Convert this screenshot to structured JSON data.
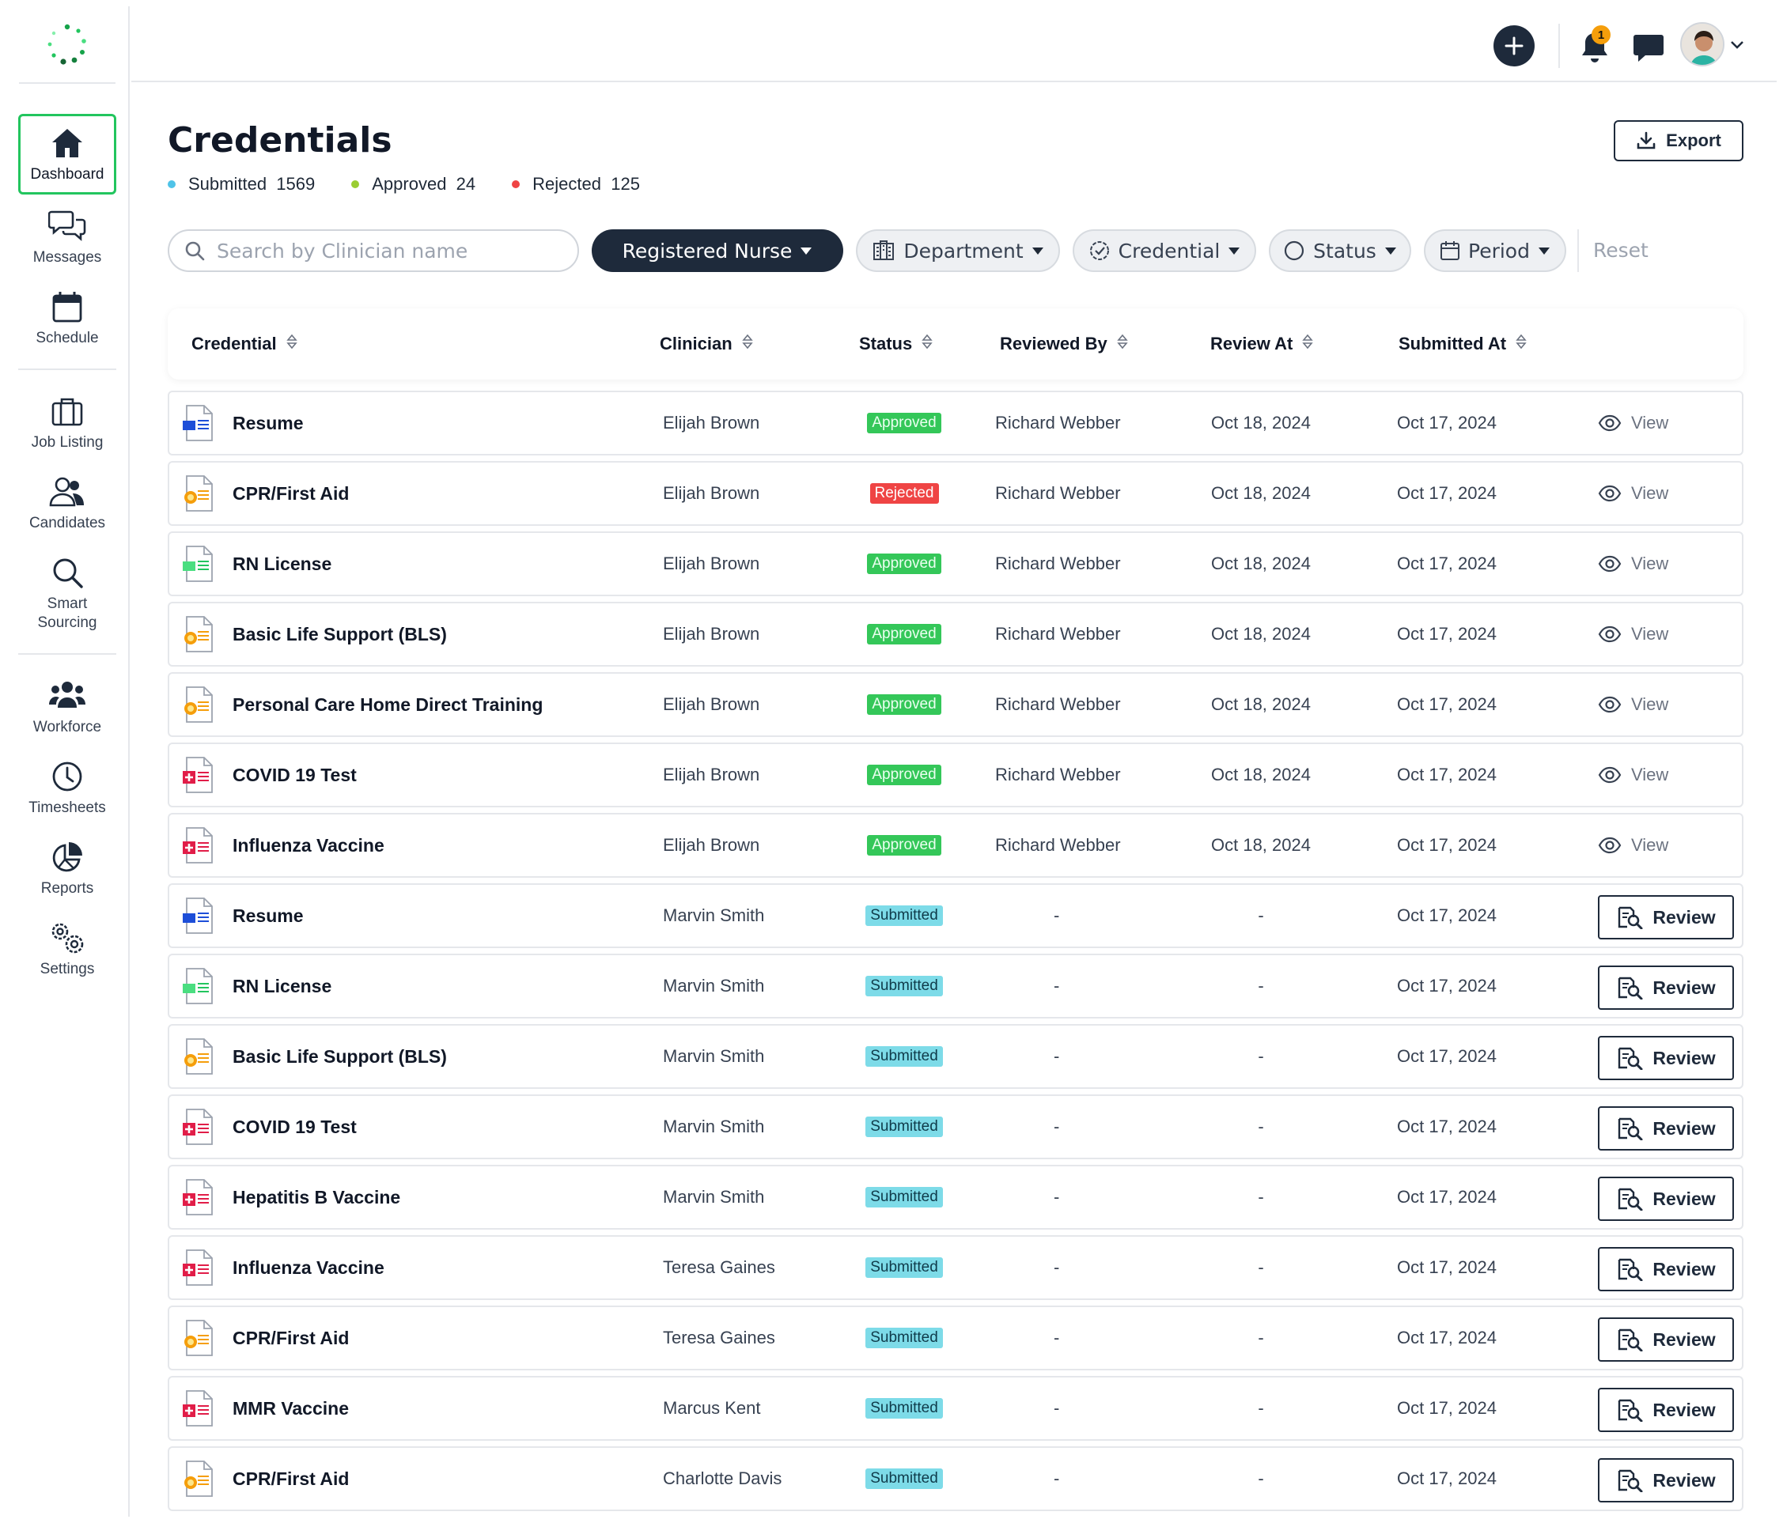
{
  "sidebar": {
    "items": [
      {
        "label": "Dashboard",
        "icon": "home-icon",
        "active": true
      },
      {
        "label": "Messages",
        "icon": "messages-icon"
      },
      {
        "label": "Schedule",
        "icon": "calendar-icon"
      },
      {
        "label": "Job Listing",
        "icon": "briefcase-icon"
      },
      {
        "label": "Candidates",
        "icon": "users-icon"
      },
      {
        "label": "Smart\nSourcing",
        "icon": "search-icon"
      },
      {
        "label": "Workforce",
        "icon": "workforce-icon"
      },
      {
        "label": "Timesheets",
        "icon": "clock-icon"
      },
      {
        "label": "Reports",
        "icon": "pie-chart-icon"
      },
      {
        "label": "Settings",
        "icon": "gears-icon"
      }
    ]
  },
  "topbar": {
    "notification_count": "1"
  },
  "page": {
    "title": "Credentials",
    "export_label": "Export",
    "stats": [
      {
        "label": "Submitted",
        "value": "1569",
        "color": "#4fc3e8"
      },
      {
        "label": "Approved",
        "value": "24",
        "color": "#9acd32"
      },
      {
        "label": "Rejected",
        "value": "125",
        "color": "#ef4444"
      }
    ]
  },
  "filters": {
    "search_placeholder": "Search by Clinician name",
    "role": "Registered Nurse",
    "department": "Department",
    "credential": "Credential",
    "status": "Status",
    "period": "Period",
    "reset": "Reset"
  },
  "table": {
    "headers": [
      "Credential",
      "Clinician",
      "Status",
      "Reviewed By",
      "Review At",
      "Submitted At"
    ],
    "view_label": "View",
    "review_label": "Review",
    "rows": [
      {
        "credential": "Resume",
        "type": "doc",
        "clinician": "Elijah Brown",
        "status": "Approved",
        "reviewed_by": "Richard Webber",
        "review_at": "Oct 18, 2024",
        "submitted_at": "Oct 17, 2024",
        "action": "view"
      },
      {
        "credential": "CPR/First Aid",
        "type": "cert",
        "clinician": "Elijah Brown",
        "status": "Rejected",
        "reviewed_by": "Richard Webber",
        "review_at": "Oct 18, 2024",
        "submitted_at": "Oct 17, 2024",
        "action": "view"
      },
      {
        "credential": "RN License",
        "type": "license",
        "clinician": "Elijah Brown",
        "status": "Approved",
        "reviewed_by": "Richard Webber",
        "review_at": "Oct 18, 2024",
        "submitted_at": "Oct 17, 2024",
        "action": "view"
      },
      {
        "credential": "Basic Life Support (BLS)",
        "type": "cert",
        "clinician": "Elijah Brown",
        "status": "Approved",
        "reviewed_by": "Richard Webber",
        "review_at": "Oct 18, 2024",
        "submitted_at": "Oct 17, 2024",
        "action": "view"
      },
      {
        "credential": "Personal Care Home Direct Training",
        "type": "cert",
        "clinician": "Elijah Brown",
        "status": "Approved",
        "reviewed_by": "Richard Webber",
        "review_at": "Oct 18, 2024",
        "submitted_at": "Oct 17, 2024",
        "action": "view"
      },
      {
        "credential": "COVID 19 Test",
        "type": "medical",
        "clinician": "Elijah Brown",
        "status": "Approved",
        "reviewed_by": "Richard Webber",
        "review_at": "Oct 18, 2024",
        "submitted_at": "Oct 17, 2024",
        "action": "view"
      },
      {
        "credential": "Influenza Vaccine",
        "type": "medical",
        "clinician": "Elijah Brown",
        "status": "Approved",
        "reviewed_by": "Richard Webber",
        "review_at": "Oct 18, 2024",
        "submitted_at": "Oct 17, 2024",
        "action": "view"
      },
      {
        "credential": "Resume",
        "type": "doc",
        "clinician": "Marvin Smith",
        "status": "Submitted",
        "reviewed_by": "-",
        "review_at": "-",
        "submitted_at": "Oct 17, 2024",
        "action": "review"
      },
      {
        "credential": "RN License",
        "type": "license",
        "clinician": "Marvin Smith",
        "status": "Submitted",
        "reviewed_by": "-",
        "review_at": "-",
        "submitted_at": "Oct 17, 2024",
        "action": "review"
      },
      {
        "credential": "Basic Life Support (BLS)",
        "type": "cert",
        "clinician": "Marvin Smith",
        "status": "Submitted",
        "reviewed_by": "-",
        "review_at": "-",
        "submitted_at": "Oct 17, 2024",
        "action": "review"
      },
      {
        "credential": "COVID 19 Test",
        "type": "medical",
        "clinician": "Marvin Smith",
        "status": "Submitted",
        "reviewed_by": "-",
        "review_at": "-",
        "submitted_at": "Oct 17, 2024",
        "action": "review"
      },
      {
        "credential": "Hepatitis B Vaccine",
        "type": "medical",
        "clinician": "Marvin Smith",
        "status": "Submitted",
        "reviewed_by": "-",
        "review_at": "-",
        "submitted_at": "Oct 17, 2024",
        "action": "review"
      },
      {
        "credential": "Influenza Vaccine",
        "type": "medical",
        "clinician": "Teresa Gaines",
        "status": "Submitted",
        "reviewed_by": "-",
        "review_at": "-",
        "submitted_at": "Oct 17, 2024",
        "action": "review"
      },
      {
        "credential": "CPR/First Aid",
        "type": "cert",
        "clinician": "Teresa Gaines",
        "status": "Submitted",
        "reviewed_by": "-",
        "review_at": "-",
        "submitted_at": "Oct 17, 2024",
        "action": "review"
      },
      {
        "credential": "MMR Vaccine",
        "type": "medical",
        "clinician": "Marcus Kent",
        "status": "Submitted",
        "reviewed_by": "-",
        "review_at": "-",
        "submitted_at": "Oct 17, 2024",
        "action": "review"
      },
      {
        "credential": "CPR/First Aid",
        "type": "cert",
        "clinician": "Charlotte Davis",
        "status": "Submitted",
        "reviewed_by": "-",
        "review_at": "-",
        "submitted_at": "Oct 17, 2024",
        "action": "review"
      }
    ]
  },
  "colors": {
    "accent_dark": "#1e2a3b",
    "active_border": "#22c55e",
    "approved": "#34c759",
    "rejected": "#ef4444",
    "submitted": "#7ddbe8"
  }
}
